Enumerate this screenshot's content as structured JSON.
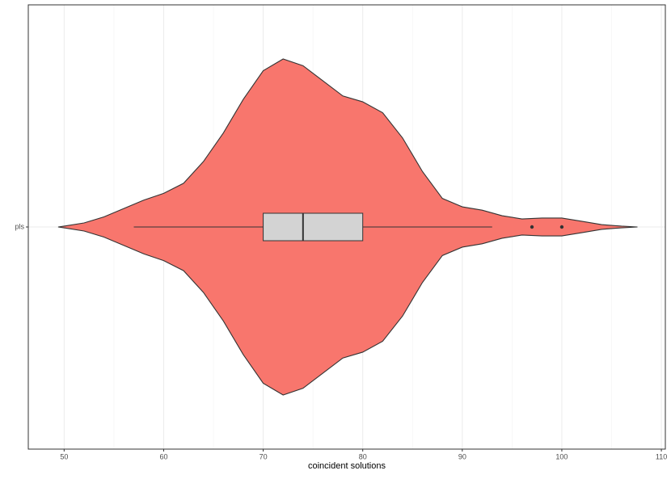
{
  "chart_data": {
    "type": "violin",
    "x_label": "coincident solutions",
    "categories": [
      "pls"
    ],
    "color": "#f8766d",
    "box_color": "#d3d3d3",
    "outline_color": "#333333",
    "xlim": [
      46.4,
      110.4
    ],
    "xticks": [
      50,
      60,
      70,
      80,
      90,
      100,
      110
    ],
    "xminor": [
      55,
      65,
      75,
      85,
      95,
      105
    ],
    "grid": true,
    "violin": {
      "x": [
        49.4,
        50,
        52,
        54,
        56,
        58,
        60,
        62,
        64,
        66,
        68,
        70,
        72,
        74,
        76,
        78,
        80,
        82,
        84,
        86,
        88,
        90,
        92,
        94,
        96,
        98,
        100,
        102,
        104,
        106,
        107.6
      ],
      "width": [
        0,
        0.005,
        0.024,
        0.06,
        0.11,
        0.16,
        0.2,
        0.26,
        0.39,
        0.56,
        0.76,
        0.93,
        1.0,
        0.96,
        0.87,
        0.78,
        0.745,
        0.68,
        0.53,
        0.33,
        0.17,
        0.12,
        0.1,
        0.067,
        0.048,
        0.053,
        0.053,
        0.034,
        0.014,
        0.005,
        0
      ]
    },
    "box": {
      "min": 57,
      "q1": 70,
      "median": 74,
      "q3": 80,
      "max": 93,
      "outliers": [
        97,
        100
      ]
    }
  }
}
